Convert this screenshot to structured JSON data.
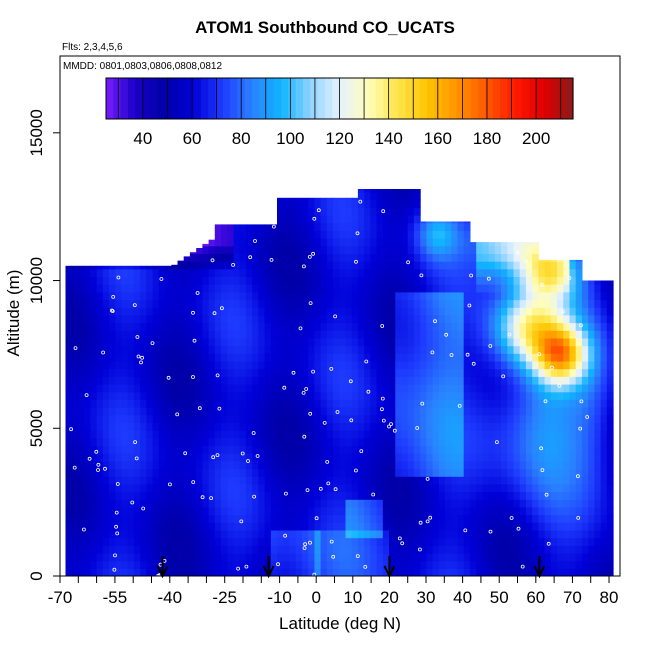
{
  "chart_data": {
    "type": "heatmap",
    "title": "ATOM1 Southbound CO_UCATS",
    "subtitle_flights": "Flts: 2,3,4,5,6",
    "subtitle_dates": "MMDD: 0801,0803,0806,0808,0812",
    "xlabel": "Latitude (deg N)",
    "ylabel": "Altitude (m)",
    "xlim": [
      -70,
      83
    ],
    "ylim": [
      0,
      17600
    ],
    "x_ticks": [
      -70,
      -55,
      -40,
      -25,
      -10,
      0,
      10,
      20,
      30,
      40,
      50,
      60,
      70,
      80
    ],
    "x_ticks_minor": [
      -65,
      -60,
      -50,
      -45,
      -35,
      -30,
      -20,
      -15,
      -5,
      5,
      15,
      25,
      35,
      45,
      55,
      65,
      75
    ],
    "x_tick_labels": [
      "-70",
      "-55",
      "-40",
      "-25",
      "-10",
      "0",
      "10",
      "20",
      "30",
      "40",
      "50",
      "60",
      "70",
      "80"
    ],
    "y_ticks": [
      0,
      5000,
      10000,
      15000
    ],
    "y_tick_labels": [
      "0",
      "5000",
      "10000",
      "15000"
    ],
    "colorbar": {
      "min": 25,
      "max": 215,
      "ticks": [
        40,
        60,
        80,
        100,
        120,
        140,
        160,
        180,
        200
      ],
      "tick_labels": [
        "40",
        "60",
        "80",
        "100",
        "120",
        "140",
        "160",
        "180",
        "200"
      ],
      "colors": [
        "#7a1cff",
        "#1a00c8",
        "#0000a8",
        "#0000d8",
        "#1f3dff",
        "#2a80ff",
        "#10b4ff",
        "#8fd2ff",
        "#e6f2ff",
        "#fffdb8",
        "#ffe44a",
        "#ffc400",
        "#ff9500",
        "#ff5a00",
        "#ff1a00",
        "#e00000",
        "#8b1a1a"
      ]
    },
    "profile_markers": [
      -42,
      -13,
      20,
      61
    ],
    "grid": false,
    "legend": "top"
  }
}
